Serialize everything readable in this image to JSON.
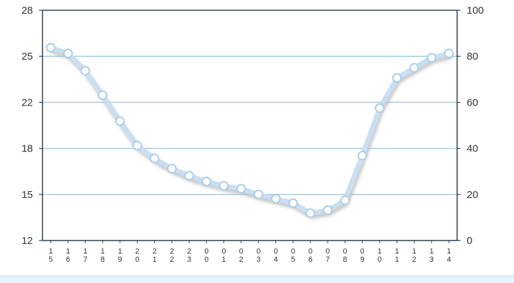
{
  "chart_data": {
    "type": "line",
    "title": "",
    "xlabel": "",
    "ylabel": "",
    "categories": [
      "15",
      "16",
      "17",
      "18",
      "19",
      "20",
      "21",
      "22",
      "23",
      "00",
      "01",
      "02",
      "03",
      "04",
      "05",
      "06",
      "07",
      "08",
      "09",
      "10",
      "11",
      "12",
      "13",
      "14"
    ],
    "series": [
      {
        "values": [
          25.4,
          25.0,
          23.8,
          22.1,
          20.3,
          18.6,
          17.7,
          17.0,
          16.5,
          16.1,
          15.8,
          15.6,
          15.2,
          14.9,
          14.6,
          13.9,
          14.1,
          14.8,
          17.9,
          21.2,
          23.3,
          24.0,
          24.7,
          25.0
        ]
      }
    ],
    "y_left_ticks": [
      "28",
      "25",
      "22",
      "18",
      "15",
      "12"
    ],
    "y_right_ticks": [
      "100",
      "80",
      "60",
      "40",
      "20",
      "0"
    ],
    "y_left_lim": [
      12,
      28
    ],
    "y_right_lim": [
      0,
      100
    ],
    "grid": "horizontal",
    "colors": {
      "line": "#c9dff2",
      "line_shadow": "#b5b5b5",
      "marker_fill": "#ffffff",
      "marker_stroke": "#a9cdea",
      "gridline": "#9ecfe3",
      "frame": "#2c3e50",
      "tick_text": "#333333"
    }
  }
}
